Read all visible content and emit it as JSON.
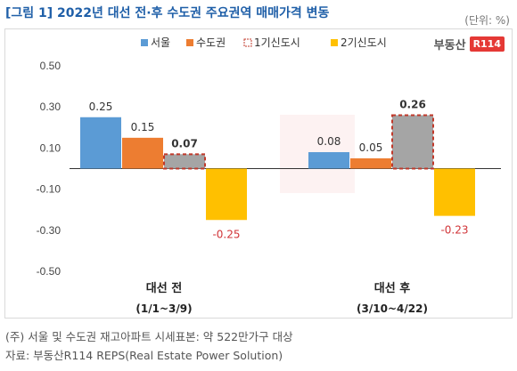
{
  "title": "[그림 1] 2022년 대선 전·후 수도권 주요권역 매매가격 변동",
  "unit": "(단위: %)",
  "logo": {
    "word": "부동산",
    "box": "R114"
  },
  "notes": [
    "(주) 서울 및 수도권 재고아파트 시세표본: 약 522만가구 대상",
    "자료: 부동산R114 REPS(Real Estate Power Solution)"
  ],
  "colors": {
    "seoul": "#5b9bd5",
    "capital": "#ed7d31",
    "new1": "#a5a5a5",
    "new2": "#ffc000",
    "negative_label": "#d13438",
    "highlight_border": "#c0392b"
  },
  "chart_data": {
    "type": "bar",
    "categories": [
      "대선 전",
      "대선 후"
    ],
    "category_sublabels": [
      "(1/1~3/9)",
      "(3/10~4/22)"
    ],
    "series": [
      {
        "name": "서울",
        "values": [
          0.25,
          0.08
        ],
        "value_labels": [
          "0.25",
          "0.08"
        ]
      },
      {
        "name": "수도권",
        "values": [
          0.15,
          0.05
        ],
        "value_labels": [
          "0.15",
          "0.05"
        ]
      },
      {
        "name": "1기신도시",
        "values": [
          0.07,
          0.26
        ],
        "value_labels": [
          "0.07",
          "0.26"
        ]
      },
      {
        "name": "2기신도시",
        "values": [
          -0.25,
          -0.23
        ],
        "value_labels": [
          "-0.25",
          "-0.23"
        ]
      }
    ],
    "ylim": [
      -0.5,
      0.5
    ],
    "yticks": [
      0.5,
      0.3,
      0.1,
      -0.1,
      -0.3,
      -0.5
    ],
    "ytick_labels": [
      "0.50",
      "0.30",
      "0.10",
      "-0.10",
      "-0.30",
      "-0.50"
    ],
    "legend_position": "top",
    "highlight_series": "1기신도시",
    "grid": false
  }
}
